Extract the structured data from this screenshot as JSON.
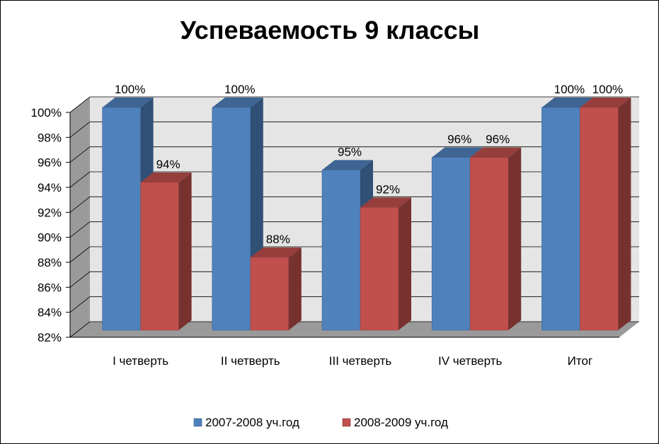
{
  "chart_data": {
    "type": "bar",
    "title": "Успеваемость 9 классы",
    "categories": [
      "I четверть",
      "II четверть",
      "III четверть",
      "IV четверть",
      "Итог"
    ],
    "series": [
      {
        "name": "2007-2008 уч.год",
        "values": [
          100,
          100,
          95,
          96,
          100
        ],
        "labels": [
          "100%",
          "100%",
          "95%",
          "96%",
          "100%"
        ],
        "color": "#4F81BD"
      },
      {
        "name": "2008-2009 уч.год",
        "values": [
          94,
          88,
          92,
          96,
          100
        ],
        "labels": [
          "94%",
          "88%",
          "92%",
          "96%",
          "100%"
        ],
        "color": "#C0504D"
      }
    ],
    "ylim": [
      82,
      100
    ],
    "yticks": [
      "82%",
      "84%",
      "86%",
      "88%",
      "90%",
      "92%",
      "94%",
      "96%",
      "98%",
      "100%"
    ],
    "ytick_values": [
      82,
      84,
      86,
      88,
      90,
      92,
      94,
      96,
      98,
      100
    ],
    "grid": true,
    "legend_position": "bottom",
    "style": "3d-clustered-column"
  }
}
